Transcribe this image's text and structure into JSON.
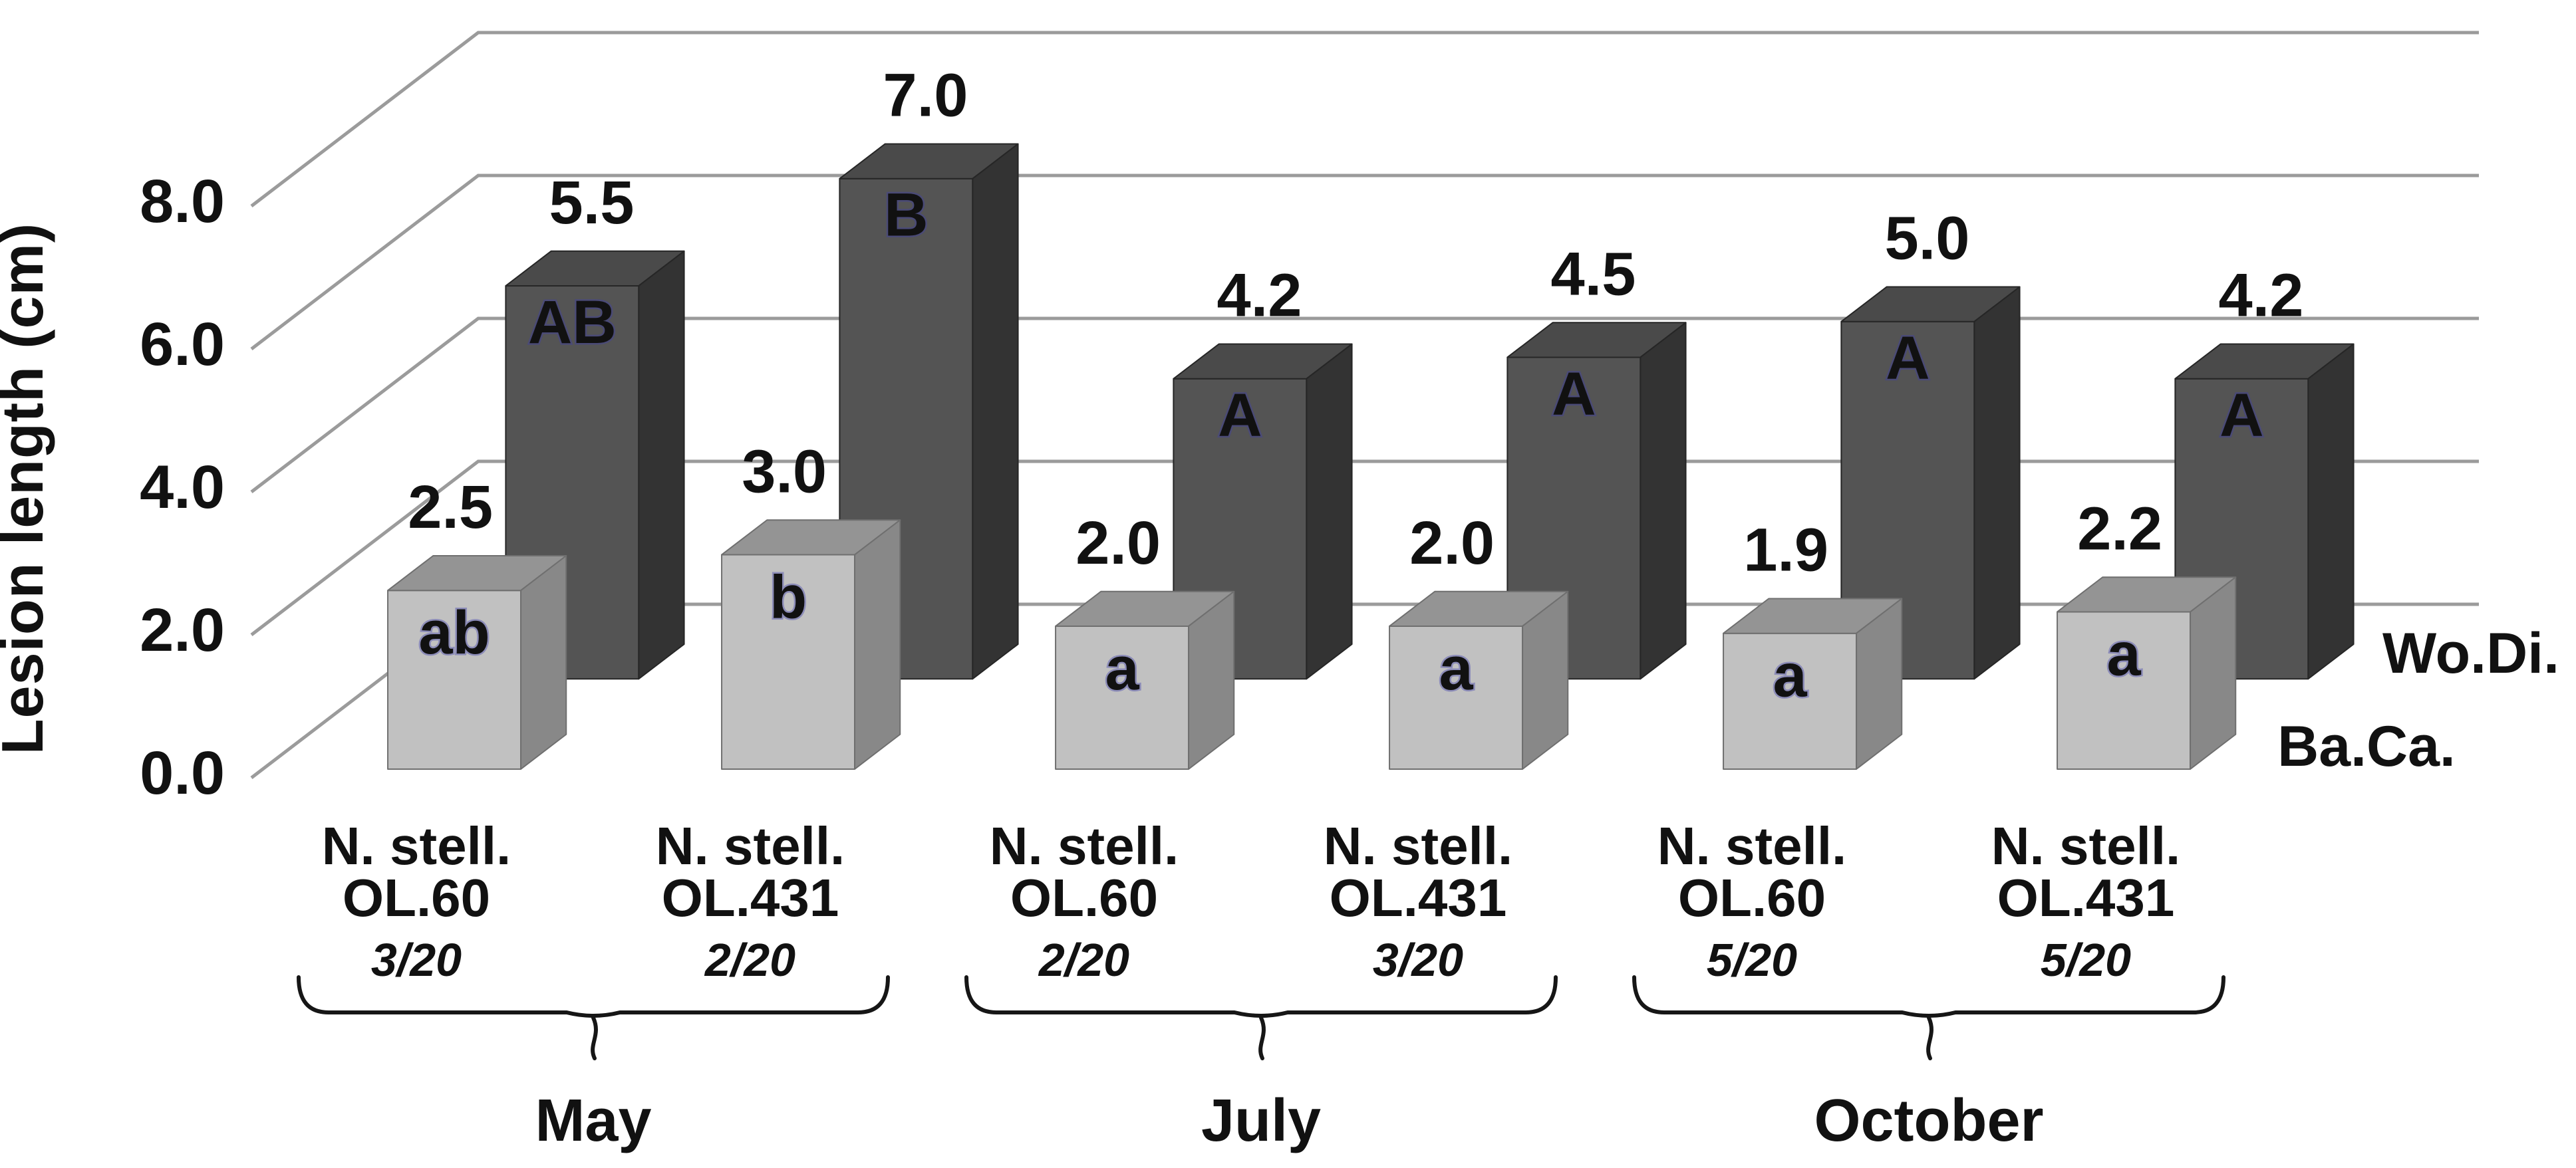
{
  "page": {
    "background": "#ffffff"
  },
  "chart_data": {
    "type": "bar",
    "style": "3d-column",
    "title": "",
    "ylabel": "Lesion length (cm)",
    "xlabel": "",
    "ylim": [
      0,
      8
    ],
    "ytick_interval": 2,
    "yticks": [
      "0.0",
      "2.0",
      "4.0",
      "6.0",
      "8.0"
    ],
    "grid": true,
    "gridline_color": "#9b9b9b",
    "background": "#ffffff",
    "letter_color": "#ffff00",
    "value_label_color": "#111111",
    "legend_position": "right-of-depth-rows",
    "categories": [
      {
        "species": "N. stell.",
        "line": "OL.60",
        "incidence": "3/20",
        "month": "May"
      },
      {
        "species": "N. stell.",
        "line": "OL.431",
        "incidence": "2/20",
        "month": "May"
      },
      {
        "species": "N. stell.",
        "line": "OL.60",
        "incidence": "2/20",
        "month": "July"
      },
      {
        "species": "N. stell.",
        "line": "OL.431",
        "incidence": "3/20",
        "month": "July"
      },
      {
        "species": "N. stell.",
        "line": "OL.60",
        "incidence": "5/20",
        "month": "October"
      },
      {
        "species": "N. stell.",
        "line": "OL.431",
        "incidence": "5/20",
        "month": "October"
      }
    ],
    "month_groups": [
      {
        "label": "May",
        "categories": [
          0,
          1
        ]
      },
      {
        "label": "July",
        "categories": [
          2,
          3
        ]
      },
      {
        "label": "October",
        "categories": [
          4,
          5
        ]
      }
    ],
    "series": [
      {
        "name": "Ba.Ca.",
        "row": "front",
        "values": [
          2.5,
          3.0,
          2.0,
          2.0,
          1.9,
          2.2
        ],
        "value_labels": [
          "2.5",
          "3.0",
          "2.0",
          "2.0",
          "1.9",
          "2.2"
        ],
        "significance_letters": [
          "ab",
          "b",
          "a",
          "a",
          "a",
          "a"
        ],
        "colors": {
          "front": "#c1c1c1",
          "top": "#949494",
          "side": "#888888",
          "edge": "#6f6f6f"
        }
      },
      {
        "name": "Wo.Di.",
        "row": "back",
        "values": [
          5.5,
          7.0,
          4.2,
          4.5,
          5.0,
          4.2
        ],
        "value_labels": [
          "5.5",
          "7.0",
          "4.2",
          "4.5",
          "5.0",
          "4.2"
        ],
        "significance_letters": [
          "AB",
          "B",
          "A",
          "A",
          "A",
          "A"
        ],
        "colors": {
          "front": "#545454",
          "top": "#4a4a4a",
          "side": "#333333",
          "edge": "#262626"
        }
      }
    ]
  }
}
